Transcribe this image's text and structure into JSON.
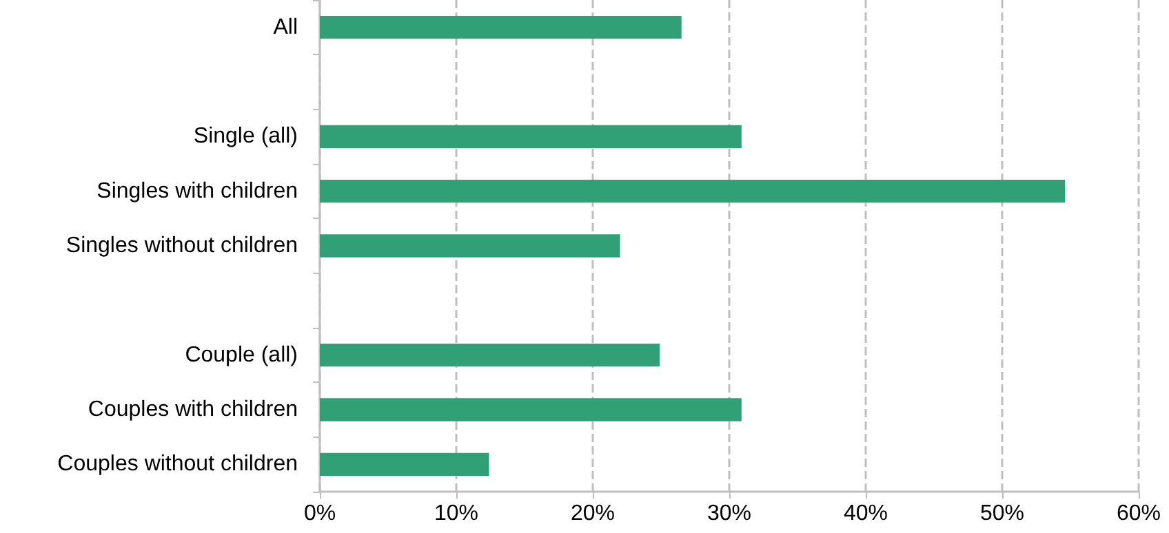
{
  "chart_data": {
    "type": "bar",
    "orientation": "horizontal",
    "categories": [
      "All",
      null,
      "Single (all)",
      "Singles with children",
      "Singles without children",
      null,
      "Couple (all)",
      "Couples with children",
      "Couples without children"
    ],
    "values": [
      26.5,
      null,
      30.9,
      54.6,
      22.0,
      null,
      24.9,
      30.9,
      12.4
    ],
    "color": "#31a077",
    "xlim": [
      0,
      60
    ],
    "xticks": [
      {
        "value": 0,
        "label": "0%"
      },
      {
        "value": 10,
        "label": "10%"
      },
      {
        "value": 20,
        "label": "20%"
      },
      {
        "value": 30,
        "label": "30%"
      },
      {
        "value": 40,
        "label": "40%"
      },
      {
        "value": 50,
        "label": "50%"
      },
      {
        "value": 60,
        "label": "60%"
      }
    ],
    "grid": "x",
    "line_style": "dashed"
  }
}
